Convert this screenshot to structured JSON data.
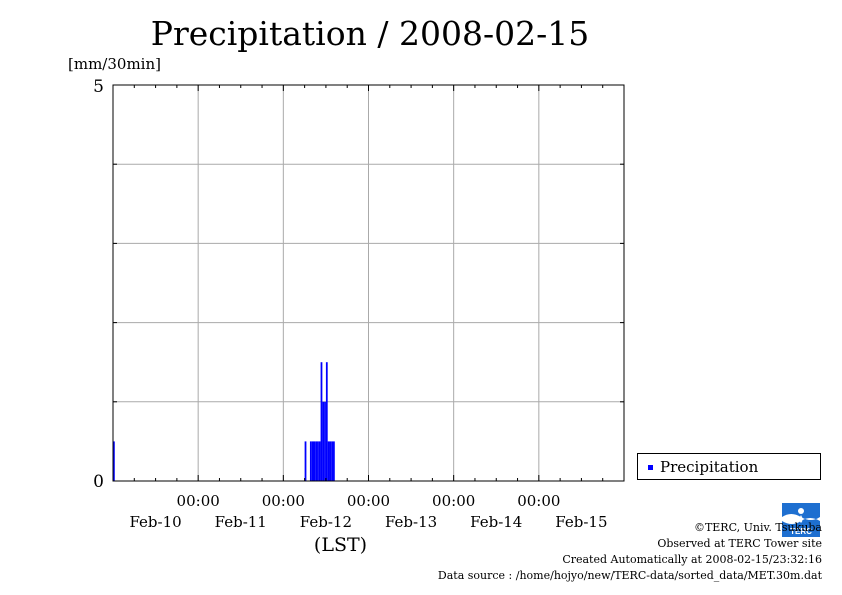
{
  "title": "Precipitation / 2008-02-15",
  "unit_label": "[mm/30min]",
  "legend": {
    "label": "Precipitation",
    "color": "#0000ff"
  },
  "credits": {
    "copyright": "©TERC, Univ. Tsukuba",
    "site": "Observed at TERC Tower site",
    "created": "Created Automatically at 2008-02-15/23:32:16",
    "source": "Data source : /home/hojyo/new/TERC-data/sorted_data/MET.30m.dat"
  },
  "logo_text": "TERC",
  "chart_data": {
    "type": "bar",
    "title": "Precipitation / 2008-02-15",
    "xlabel": "(LST)",
    "ylabel": "[mm/30min]",
    "ylim": [
      0,
      5
    ],
    "xlim": [
      "2008-02-09T00:00",
      "2008-02-15T00:00"
    ],
    "y_ticks_labeled": [
      "0",
      "5"
    ],
    "y_gridlines": [
      1,
      2,
      3,
      4
    ],
    "x_gridlines": [
      "2008-02-10T00:00",
      "2008-02-11T00:00",
      "2008-02-12T00:00",
      "2008-02-13T00:00",
      "2008-02-14T00:00"
    ],
    "x_tick_labels": [
      {
        "time": "00:00",
        "date": "Feb-10",
        "at": "2008-02-10T00:00"
      },
      {
        "time": "00:00",
        "date": "Feb-11",
        "at": "2008-02-11T00:00"
      },
      {
        "time": "00:00",
        "date": "Feb-12",
        "at": "2008-02-12T00:00"
      },
      {
        "time": "00:00",
        "date": "Feb-13",
        "at": "2008-02-13T00:00"
      },
      {
        "time": "00:00",
        "date": "Feb-14",
        "at": "2008-02-14T00:00"
      }
    ],
    "x_date_labels_extra": [
      {
        "date": "Feb-15",
        "at": "2008-02-15T00:00"
      }
    ],
    "grid": true,
    "legend_position": "right",
    "bar_color": "#0000ff",
    "series": [
      {
        "name": "Precipitation",
        "points": [
          {
            "x": "2008-02-09T00:00",
            "y": 0.5
          },
          {
            "x": "2008-02-11T06:00",
            "y": 0.5
          },
          {
            "x": "2008-02-11T07:30",
            "y": 0.5
          },
          {
            "x": "2008-02-11T08:00",
            "y": 0.5
          },
          {
            "x": "2008-02-11T08:30",
            "y": 0.5
          },
          {
            "x": "2008-02-11T09:00",
            "y": 0.5
          },
          {
            "x": "2008-02-11T09:30",
            "y": 0.5
          },
          {
            "x": "2008-02-11T10:00",
            "y": 0.5
          },
          {
            "x": "2008-02-11T10:30",
            "y": 1.5
          },
          {
            "x": "2008-02-11T11:00",
            "y": 1.0
          },
          {
            "x": "2008-02-11T11:30",
            "y": 1.0
          },
          {
            "x": "2008-02-11T12:00",
            "y": 1.5
          },
          {
            "x": "2008-02-11T12:30",
            "y": 0.5
          },
          {
            "x": "2008-02-11T13:00",
            "y": 0.5
          },
          {
            "x": "2008-02-11T13:30",
            "y": 0.5
          },
          {
            "x": "2008-02-11T14:00",
            "y": 0.5
          }
        ]
      }
    ]
  }
}
